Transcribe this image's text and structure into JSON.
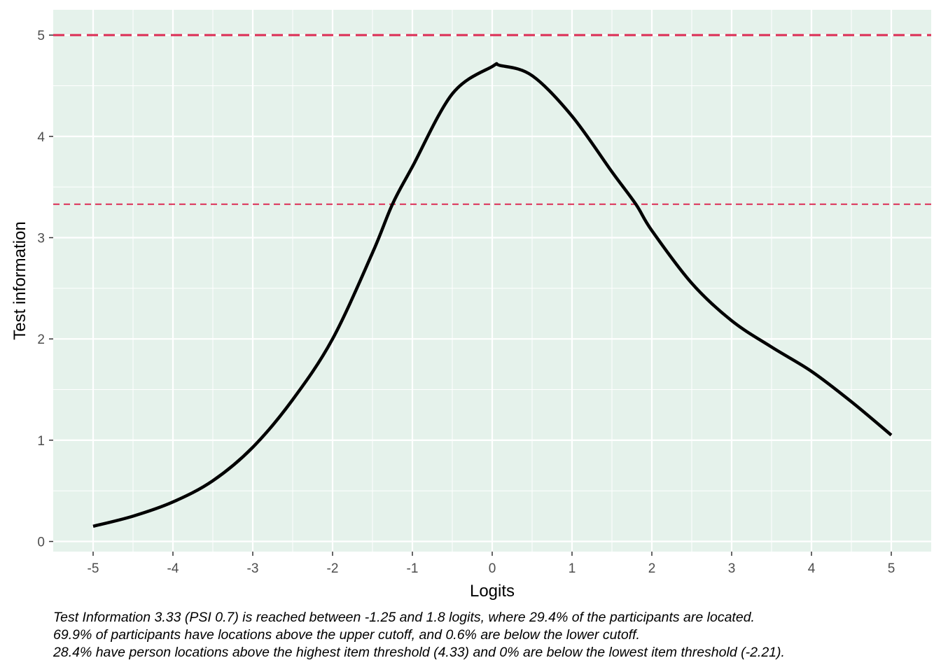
{
  "chart_data": {
    "type": "line",
    "xlabel": "Logits",
    "ylabel": "Test information",
    "xlim": [
      -5.5,
      5.5
    ],
    "ylim": [
      -0.1,
      5.25
    ],
    "x_ticks": [
      -5,
      -4,
      -3,
      -2,
      -1,
      0,
      1,
      2,
      3,
      4,
      5
    ],
    "x_tick_labels": [
      "-5",
      "-4",
      "-3",
      "-2",
      "-1",
      "0",
      "1",
      "2",
      "3",
      "4",
      "5"
    ],
    "y_ticks": [
      0,
      1,
      2,
      3,
      4,
      5
    ],
    "y_tick_labels": [
      "0",
      "1",
      "2",
      "3",
      "4",
      "5"
    ],
    "grid": true,
    "panel_background": "#e5f2eb",
    "series": [
      {
        "color": "#000000",
        "x": [
          -5,
          -4.5,
          -4,
          -3.5,
          -3,
          -2.5,
          -2,
          -1.5,
          -1.25,
          -1,
          -0.5,
          0,
          0.1,
          0.5,
          1,
          1.5,
          1.8,
          2,
          2.5,
          3,
          3.5,
          4,
          4.5,
          5
        ],
        "y": [
          0.15,
          0.25,
          0.39,
          0.6,
          0.93,
          1.4,
          2.0,
          2.85,
          3.33,
          3.7,
          4.42,
          4.69,
          4.7,
          4.6,
          4.2,
          3.65,
          3.33,
          3.07,
          2.55,
          2.18,
          1.92,
          1.68,
          1.38,
          1.05
        ]
      }
    ],
    "reference_lines": [
      {
        "y": 5,
        "color": "#dc2d55",
        "style": "dashed"
      },
      {
        "y": 3.33,
        "color": "#dc2d55",
        "style": "dashed"
      }
    ]
  },
  "caption": {
    "lines": [
      "Test Information 3.33 (PSI 0.7) is reached between -1.25 and 1.8 logits, where 29.4% of the participants are located.",
      "69.9% of participants have locations above the upper cutoff, and 0.6% are below the lower cutoff.",
      "28.4% have person locations above the highest item threshold (4.33) and 0% are below the lowest item threshold (-2.21)."
    ]
  }
}
